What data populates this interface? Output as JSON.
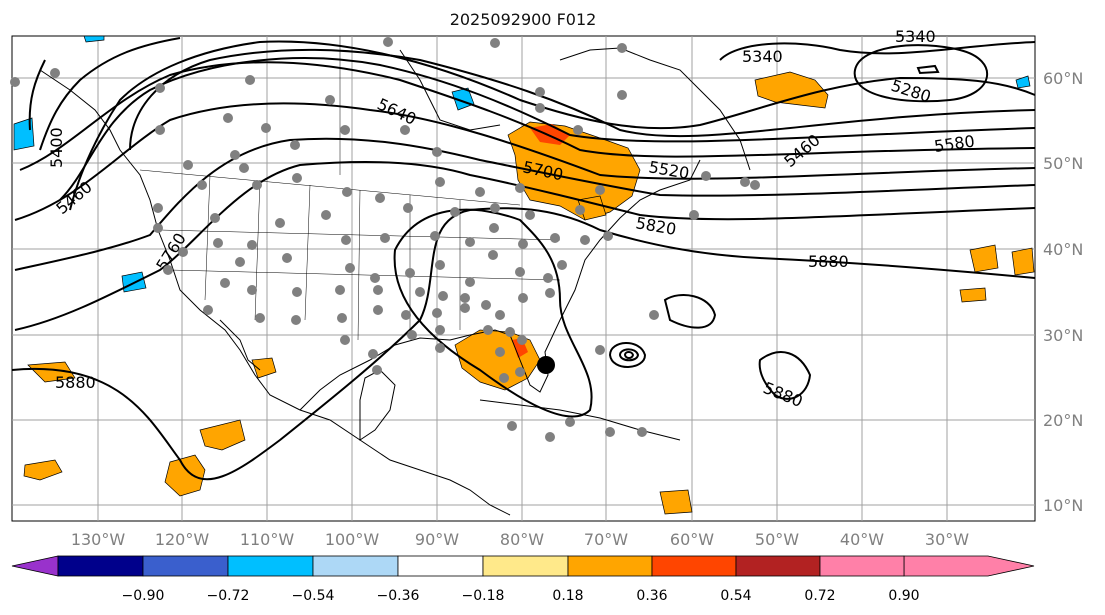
{
  "title": "2025092900 F012",
  "lon_labels": [
    "130°W",
    "120°W",
    "110°W",
    "100°W",
    "90°W",
    "80°W",
    "70°W",
    "60°W",
    "50°W",
    "40°W",
    "30°W"
  ],
  "lat_labels": [
    "60°N",
    "50°N",
    "40°N",
    "30°N",
    "20°N",
    "10°N"
  ],
  "contour_labels": [
    "5340",
    "5340",
    "5280",
    "5400",
    "5460",
    "5640",
    "5700",
    "5520",
    "5460",
    "5580",
    "5760",
    "5820",
    "5880",
    "5880",
    "5880"
  ],
  "colorbar": {
    "ticks": [
      "−0.90",
      "−0.72",
      "−0.54",
      "−0.36",
      "−0.18",
      "0.18",
      "0.36",
      "0.54",
      "0.72",
      "0.90"
    ],
    "colors": [
      "#9932cc",
      "#00008b",
      "#3a5fcd",
      "#00bfff",
      "#add8f6",
      "#ffffff",
      "#ffe98a",
      "#ffa500",
      "#ff4500",
      "#b22222",
      "#ff80a8"
    ]
  },
  "colors": {
    "orange": "#ffa500",
    "red_orange": "#ff4500",
    "light_blue": "#00bfff",
    "station_dots": "#808080"
  }
}
